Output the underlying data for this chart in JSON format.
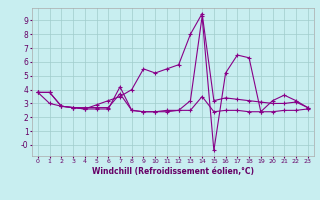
{
  "xlabel": "Windchill (Refroidissement éolien,°C)",
  "background_color": "#c8eef0",
  "grid_color": "#a0cccc",
  "line_color": "#880088",
  "x": [
    0,
    1,
    2,
    3,
    4,
    5,
    6,
    7,
    8,
    9,
    10,
    11,
    12,
    13,
    14,
    15,
    16,
    17,
    18,
    19,
    20,
    21,
    22,
    23
  ],
  "series1": [
    3.8,
    3.8,
    2.8,
    2.7,
    2.6,
    2.6,
    2.6,
    4.2,
    2.5,
    2.4,
    2.4,
    2.5,
    2.5,
    3.2,
    9.3,
    -0.4,
    5.2,
    6.5,
    6.3,
    2.4,
    3.2,
    3.6,
    3.2,
    2.7
  ],
  "series2": [
    3.8,
    3.8,
    2.8,
    2.7,
    2.6,
    2.9,
    3.2,
    3.5,
    4.0,
    5.5,
    5.2,
    5.5,
    5.8,
    8.0,
    9.5,
    3.2,
    3.4,
    3.3,
    3.2,
    3.1,
    3.0,
    3.0,
    3.1,
    2.7
  ],
  "series3": [
    3.8,
    3.0,
    2.8,
    2.7,
    2.7,
    2.7,
    2.7,
    3.7,
    2.5,
    2.4,
    2.4,
    2.4,
    2.5,
    2.5,
    3.5,
    2.4,
    2.5,
    2.5,
    2.4,
    2.4,
    2.4,
    2.5,
    2.5,
    2.6
  ],
  "ylim": [
    -0.8,
    9.9
  ],
  "xlim": [
    -0.5,
    23.5
  ],
  "ytick_vals": [
    0,
    1,
    2,
    3,
    4,
    5,
    6,
    7,
    8,
    9
  ],
  "ytick_labels": [
    "-0",
    "1",
    "2",
    "3",
    "4",
    "5",
    "6",
    "7",
    "8",
    "9"
  ],
  "xticks": [
    0,
    1,
    2,
    3,
    4,
    5,
    6,
    7,
    8,
    9,
    10,
    11,
    12,
    13,
    14,
    15,
    16,
    17,
    18,
    19,
    20,
    21,
    22,
    23
  ]
}
